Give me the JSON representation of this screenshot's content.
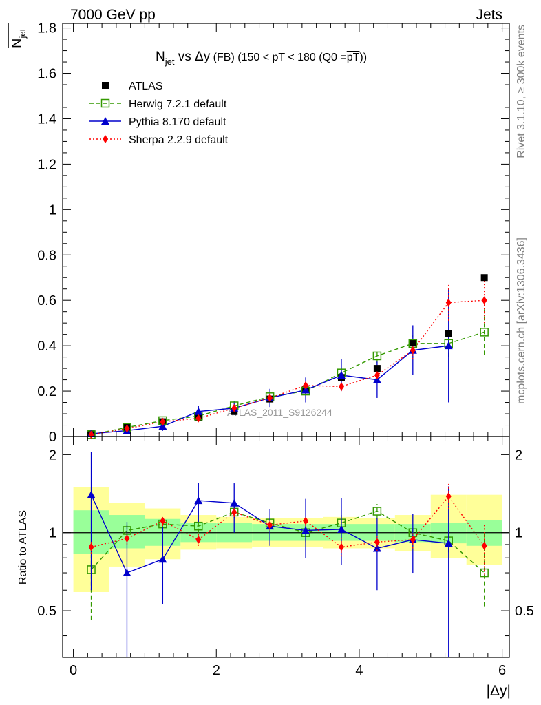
{
  "header": {
    "left": "7000 GeV pp",
    "right": "Jets"
  },
  "side_labels": {
    "rivet": "Rivet 3.1.10, ≥ 300k events",
    "mcplots": "mcplots.cern.ch [arXiv:1306.3436]"
  },
  "chart_data": [
    {
      "type": "scatter",
      "panel": "main",
      "title": "N_jet vs Δy (FB) (150 < pT < 180 (Q0 = pT))",
      "title_parts": {
        "n": "N",
        "jet": "jet",
        "vs": " vs ",
        "dy": "Δy",
        "fb": " (FB) ",
        "cut": "(150 < pT < 180 (Q0 =",
        "ptbar": "pT",
        "close": "))"
      },
      "ylabel": "N̅_jet",
      "ylabel_parts": {
        "n": "N",
        "jet": "jet"
      },
      "watermark": "ATLAS_2011_S9126244",
      "xlim": [
        -0.15,
        6.1
      ],
      "ylim": [
        0,
        1.82
      ],
      "yticks": [
        0,
        0.2,
        0.4,
        0.6,
        0.8,
        1,
        1.2,
        1.4,
        1.6,
        1.8
      ],
      "ytick_labels": [
        "0",
        "0.2",
        "0.4",
        "0.6",
        "0.8",
        "1",
        "1.2",
        "1.4",
        "1.6",
        "1.8"
      ],
      "x": [
        0.25,
        0.75,
        1.25,
        1.75,
        2.25,
        2.75,
        3.25,
        3.75,
        4.25,
        4.75,
        5.25,
        5.75
      ],
      "series": [
        {
          "name": "ATLAS",
          "style": "data",
          "color": "#000000",
          "values": [
            0.012,
            0.04,
            0.065,
            0.085,
            0.11,
            0.165,
            0.205,
            0.26,
            0.3,
            0.415,
            0.455,
            0.7
          ]
        },
        {
          "name": "Herwig 7.2.1 default",
          "style": "herwig",
          "color": "#339900",
          "values": [
            0.008,
            0.04,
            0.07,
            0.09,
            0.135,
            0.175,
            0.2,
            0.28,
            0.355,
            0.41,
            0.41,
            0.46
          ],
          "errors": [
            0.003,
            0.006,
            0.008,
            0.01,
            0.012,
            0.015,
            0.02,
            0.025,
            0.03,
            0.035,
            0.06,
            0.1
          ]
        },
        {
          "name": "Pythia 8.170 default",
          "style": "pythia",
          "color": "#0000cc",
          "values": [
            0.012,
            0.026,
            0.045,
            0.11,
            0.125,
            0.17,
            0.205,
            0.27,
            0.25,
            0.38,
            0.4,
            null
          ],
          "errors": [
            0.008,
            0.01,
            0.02,
            0.025,
            0.03,
            0.04,
            0.055,
            0.07,
            0.08,
            0.11,
            0.25,
            null
          ]
        },
        {
          "name": "Sherpa 2.2.9 default",
          "style": "sherpa",
          "color": "#ff0000",
          "values": [
            0.008,
            0.035,
            0.065,
            0.08,
            0.125,
            0.17,
            0.225,
            0.22,
            0.27,
            0.38,
            0.59,
            0.6
          ],
          "errors": [
            0.003,
            0.006,
            0.008,
            0.01,
            0.012,
            0.015,
            0.02,
            0.02,
            0.03,
            0.04,
            0.08,
            0.1
          ]
        }
      ]
    },
    {
      "type": "scatter",
      "panel": "ratio",
      "ylabel": "Ratio to ATLAS",
      "xlabel": "|Δy|",
      "xlim": [
        -0.15,
        6.1
      ],
      "ylim": [
        0.33,
        2.35
      ],
      "xticks": [
        0,
        2,
        4,
        6
      ],
      "xtick_labels": [
        "0",
        "2",
        "4",
        "6"
      ],
      "yticks": [
        0.5,
        1,
        2
      ],
      "ytick_labels": [
        "0.5",
        "1",
        "2"
      ],
      "x": [
        0.25,
        0.75,
        1.25,
        1.75,
        2.25,
        2.75,
        3.25,
        3.75,
        4.25,
        4.75,
        5.25,
        5.75
      ],
      "band_edges": [
        0,
        0.5,
        1,
        1.5,
        2,
        2.5,
        3,
        3.5,
        4,
        4.5,
        5,
        5.5,
        6
      ],
      "band_inner": [
        [
          0.83,
          1.22
        ],
        [
          0.87,
          1.17
        ],
        [
          0.89,
          1.13
        ],
        [
          0.92,
          1.09
        ],
        [
          0.92,
          1.09
        ],
        [
          0.93,
          1.08
        ],
        [
          0.93,
          1.08
        ],
        [
          0.93,
          1.08
        ],
        [
          0.93,
          1.08
        ],
        [
          0.92,
          1.08
        ],
        [
          0.91,
          1.09
        ],
        [
          0.89,
          1.12
        ]
      ],
      "band_outer": [
        [
          0.59,
          1.5
        ],
        [
          0.74,
          1.3
        ],
        [
          0.79,
          1.24
        ],
        [
          0.86,
          1.17
        ],
        [
          0.87,
          1.15
        ],
        [
          0.88,
          1.14
        ],
        [
          0.88,
          1.14
        ],
        [
          0.87,
          1.15
        ],
        [
          0.87,
          1.14
        ],
        [
          0.85,
          1.17
        ],
        [
          0.8,
          1.4
        ],
        [
          0.75,
          1.4
        ]
      ],
      "band_colors": {
        "inner": "#99ff99",
        "outer": "#ffff99"
      },
      "series": [
        {
          "name": "Herwig 7.2.1 default",
          "style": "herwig",
          "color": "#339900",
          "values": [
            0.72,
            1.02,
            1.08,
            1.06,
            1.2,
            1.09,
            1.0,
            1.09,
            1.21,
            1.0,
            0.93,
            0.7
          ],
          "errors_low": [
            0.26,
            0.05,
            0.05,
            0.06,
            0.06,
            0.06,
            0.08,
            0.08,
            0.08,
            0.06,
            0.09,
            0.18
          ],
          "errors_high": [
            0.1,
            0.05,
            0.05,
            0.06,
            0.06,
            0.06,
            0.08,
            0.08,
            0.08,
            0.06,
            0.09,
            0.31
          ]
        },
        {
          "name": "Pythia 8.170 default",
          "style": "pythia",
          "color": "#0000cc",
          "values": [
            1.4,
            0.7,
            0.79,
            1.33,
            1.3,
            1.06,
            1.02,
            1.03,
            0.87,
            0.94,
            0.91,
            null
          ],
          "errors_low": [
            0.8,
            0.4,
            0.26,
            0.23,
            0.3,
            0.17,
            0.22,
            0.28,
            0.27,
            0.24,
            0.6,
            null
          ],
          "errors_high": [
            0.65,
            0.4,
            0.26,
            0.23,
            0.25,
            0.17,
            0.33,
            0.33,
            0.27,
            0.24,
            0.6,
            null
          ]
        },
        {
          "name": "Sherpa 2.2.9 default",
          "style": "sherpa",
          "color": "#ff0000",
          "values": [
            0.88,
            0.95,
            1.11,
            0.94,
            1.2,
            1.07,
            1.11,
            0.88,
            0.92,
            0.94,
            1.38,
            0.89
          ],
          "errors_low": [
            0.05,
            0.05,
            0.05,
            0.05,
            0.05,
            0.05,
            0.05,
            0.07,
            0.07,
            0.07,
            0.15,
            0.2
          ],
          "errors_high": [
            0.05,
            0.05,
            0.05,
            0.05,
            0.05,
            0.05,
            0.05,
            0.07,
            0.07,
            0.07,
            0.18,
            0.2
          ]
        }
      ]
    }
  ]
}
